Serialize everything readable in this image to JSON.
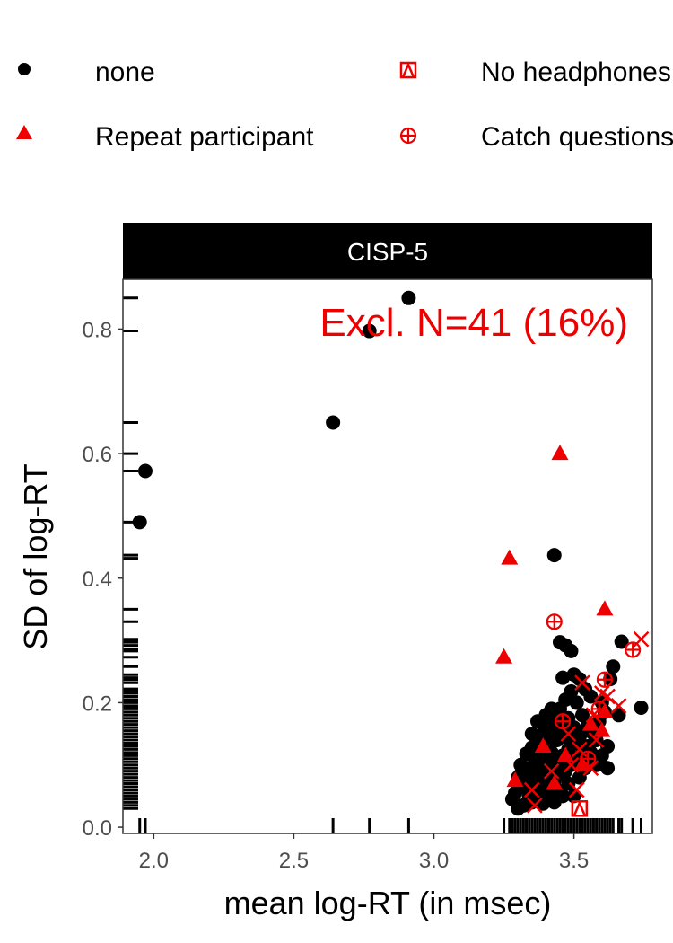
{
  "chart_data": {
    "type": "scatter",
    "title": "",
    "panel_label": "CISP-5",
    "xlabel": "mean log-RT (in msec)",
    "ylabel": "SD of log-RT",
    "xlim": [
      1.89,
      3.78
    ],
    "ylim": [
      -0.01,
      0.88
    ],
    "xticks": [
      2.0,
      2.5,
      3.0,
      3.5
    ],
    "xtick_labels": [
      "2.0",
      "2.5",
      "3.0",
      "3.5"
    ],
    "yticks": [
      0.0,
      0.2,
      0.4,
      0.6,
      0.8
    ],
    "ytick_labels": [
      "0.0",
      "0.2",
      "0.4",
      "0.6",
      "0.8"
    ],
    "grid": false,
    "legend_position": "top",
    "annotation": {
      "text": "Excl. N=41 (16%)",
      "color": "#ee0000",
      "position": "top-right"
    },
    "marginal_rugs": [
      "left",
      "bottom"
    ],
    "series": [
      {
        "name": "none",
        "marker": "circle",
        "color": "#000000",
        "points": [
          [
            1.97,
            0.572
          ],
          [
            1.95,
            0.49
          ],
          [
            2.64,
            0.65
          ],
          [
            2.77,
            0.797
          ],
          [
            2.91,
            0.85
          ],
          [
            3.43,
            0.437
          ],
          [
            3.45,
            0.297
          ],
          [
            3.47,
            0.292
          ],
          [
            3.49,
            0.283
          ],
          [
            3.5,
            0.245
          ],
          [
            3.52,
            0.238
          ],
          [
            3.54,
            0.222
          ],
          [
            3.56,
            0.21
          ],
          [
            3.6,
            0.2
          ],
          [
            3.63,
            0.238
          ],
          [
            3.64,
            0.258
          ],
          [
            3.67,
            0.298
          ],
          [
            3.74,
            0.192
          ],
          [
            3.66,
            0.18
          ],
          [
            3.62,
            0.13
          ],
          [
            3.62,
            0.095
          ],
          [
            3.6,
            0.115
          ],
          [
            3.58,
            0.14
          ],
          [
            3.55,
            0.165
          ],
          [
            3.53,
            0.18
          ],
          [
            3.51,
            0.2
          ],
          [
            3.49,
            0.218
          ],
          [
            3.47,
            0.205
          ],
          [
            3.45,
            0.19
          ],
          [
            3.43,
            0.175
          ],
          [
            3.41,
            0.165
          ],
          [
            3.39,
            0.15
          ],
          [
            3.37,
            0.14
          ],
          [
            3.35,
            0.128
          ],
          [
            3.33,
            0.118
          ],
          [
            3.31,
            0.1
          ],
          [
            3.3,
            0.08
          ],
          [
            3.29,
            0.055
          ],
          [
            3.28,
            0.045
          ],
          [
            3.3,
            0.03
          ],
          [
            3.32,
            0.035
          ],
          [
            3.34,
            0.05
          ],
          [
            3.36,
            0.06
          ],
          [
            3.38,
            0.07
          ],
          [
            3.4,
            0.085
          ],
          [
            3.42,
            0.095
          ],
          [
            3.44,
            0.105
          ],
          [
            3.46,
            0.115
          ],
          [
            3.48,
            0.125
          ],
          [
            3.5,
            0.135
          ],
          [
            3.52,
            0.145
          ],
          [
            3.54,
            0.155
          ],
          [
            3.56,
            0.12
          ],
          [
            3.58,
            0.1
          ],
          [
            3.46,
            0.16
          ],
          [
            3.44,
            0.14
          ],
          [
            3.42,
            0.12
          ],
          [
            3.4,
            0.11
          ],
          [
            3.38,
            0.1
          ],
          [
            3.36,
            0.09
          ],
          [
            3.34,
            0.075
          ],
          [
            3.32,
            0.065
          ],
          [
            3.35,
            0.04
          ],
          [
            3.37,
            0.045
          ],
          [
            3.39,
            0.055
          ],
          [
            3.41,
            0.065
          ],
          [
            3.43,
            0.075
          ],
          [
            3.45,
            0.085
          ],
          [
            3.47,
            0.09
          ],
          [
            3.49,
            0.1
          ],
          [
            3.51,
            0.11
          ],
          [
            3.53,
            0.12
          ],
          [
            3.55,
            0.13
          ],
          [
            3.57,
            0.15
          ],
          [
            3.59,
            0.17
          ],
          [
            3.61,
            0.185
          ],
          [
            3.48,
            0.175
          ],
          [
            3.5,
            0.16
          ],
          [
            3.4,
            0.18
          ],
          [
            3.42,
            0.19
          ],
          [
            3.38,
            0.125
          ],
          [
            3.36,
            0.11
          ],
          [
            3.33,
            0.095
          ],
          [
            3.31,
            0.085
          ],
          [
            3.44,
            0.06
          ],
          [
            3.46,
            0.05
          ],
          [
            3.48,
            0.07
          ],
          [
            3.52,
            0.08
          ],
          [
            3.54,
            0.095
          ],
          [
            3.56,
            0.105
          ],
          [
            3.39,
            0.038
          ],
          [
            3.41,
            0.048
          ],
          [
            3.43,
            0.04
          ],
          [
            3.35,
            0.15
          ],
          [
            3.37,
            0.17
          ],
          [
            3.5,
            0.05
          ],
          [
            3.46,
            0.24
          ],
          [
            3.4,
            0.14
          ],
          [
            3.48,
            0.145
          ],
          [
            3.44,
            0.165
          ],
          [
            3.42,
            0.15
          ],
          [
            3.38,
            0.08
          ]
        ]
      },
      {
        "name": "Repeat participant",
        "marker": "triangle",
        "color": "#ee0000",
        "points": [
          [
            3.45,
            0.6
          ],
          [
            3.27,
            0.432
          ],
          [
            3.25,
            0.273
          ],
          [
            3.61,
            0.35
          ],
          [
            3.29,
            0.075
          ],
          [
            3.39,
            0.13
          ],
          [
            3.43,
            0.07
          ],
          [
            3.53,
            0.1
          ],
          [
            3.56,
            0.165
          ],
          [
            3.6,
            0.155
          ],
          [
            3.61,
            0.185
          ],
          [
            3.47,
            0.115
          ]
        ]
      },
      {
        "name": "No headphones",
        "marker": "boxdiamond",
        "color": "#ee0000",
        "points": [
          [
            3.52,
            0.03
          ]
        ]
      },
      {
        "name": "Catch questions",
        "marker": "circleplus",
        "color": "#ee0000",
        "points": [
          [
            3.43,
            0.33
          ],
          [
            3.61,
            0.237
          ],
          [
            3.71,
            0.285
          ],
          [
            3.59,
            0.19
          ],
          [
            3.55,
            0.11
          ],
          [
            3.46,
            0.17
          ]
        ]
      },
      {
        "name": "",
        "marker": "cross",
        "color": "#ee0000",
        "points": [
          [
            3.74,
            0.302
          ],
          [
            3.53,
            0.232
          ],
          [
            3.6,
            0.215
          ],
          [
            3.66,
            0.195
          ],
          [
            3.57,
            0.18
          ],
          [
            3.62,
            0.21
          ],
          [
            3.52,
            0.125
          ],
          [
            3.49,
            0.1
          ],
          [
            3.56,
            0.095
          ],
          [
            3.35,
            0.06
          ],
          [
            3.36,
            0.035
          ],
          [
            3.42,
            0.09
          ],
          [
            3.48,
            0.15
          ],
          [
            3.51,
            0.06
          ],
          [
            3.58,
            0.14
          ]
        ]
      }
    ],
    "rug_y": [
      0.85,
      0.797,
      0.65,
      0.6,
      0.572,
      0.49,
      0.437,
      0.432,
      0.35,
      0.33,
      0.302,
      0.298,
      0.297,
      0.292,
      0.285,
      0.283,
      0.273,
      0.258,
      0.245,
      0.24,
      0.238,
      0.237,
      0.232,
      0.222,
      0.218,
      0.215,
      0.21,
      0.205,
      0.2,
      0.195,
      0.192,
      0.19,
      0.185,
      0.18,
      0.175,
      0.17,
      0.165,
      0.16,
      0.155,
      0.15,
      0.145,
      0.14,
      0.135,
      0.13,
      0.125,
      0.12,
      0.115,
      0.11,
      0.105,
      0.1,
      0.095,
      0.09,
      0.085,
      0.08,
      0.075,
      0.07,
      0.065,
      0.06,
      0.055,
      0.05,
      0.045,
      0.04,
      0.035,
      0.03
    ],
    "rug_x": [
      1.95,
      1.97,
      2.64,
      2.77,
      2.91,
      3.25,
      3.27,
      3.28,
      3.29,
      3.3,
      3.31,
      3.32,
      3.33,
      3.34,
      3.35,
      3.36,
      3.37,
      3.38,
      3.39,
      3.4,
      3.41,
      3.42,
      3.43,
      3.44,
      3.45,
      3.46,
      3.47,
      3.48,
      3.49,
      3.5,
      3.51,
      3.52,
      3.53,
      3.54,
      3.55,
      3.56,
      3.57,
      3.58,
      3.59,
      3.6,
      3.61,
      3.62,
      3.63,
      3.64,
      3.66,
      3.67,
      3.71,
      3.74
    ]
  },
  "legend": {
    "items": [
      {
        "label": "none",
        "marker": "circle",
        "color": "#000000"
      },
      {
        "label": "No headphones",
        "marker": "boxdiamond",
        "color": "#ee0000"
      },
      {
        "label": "Repeat participant",
        "marker": "triangle",
        "color": "#ee0000"
      },
      {
        "label": "Catch questions",
        "marker": "circleplus",
        "color": "#ee0000"
      }
    ]
  }
}
